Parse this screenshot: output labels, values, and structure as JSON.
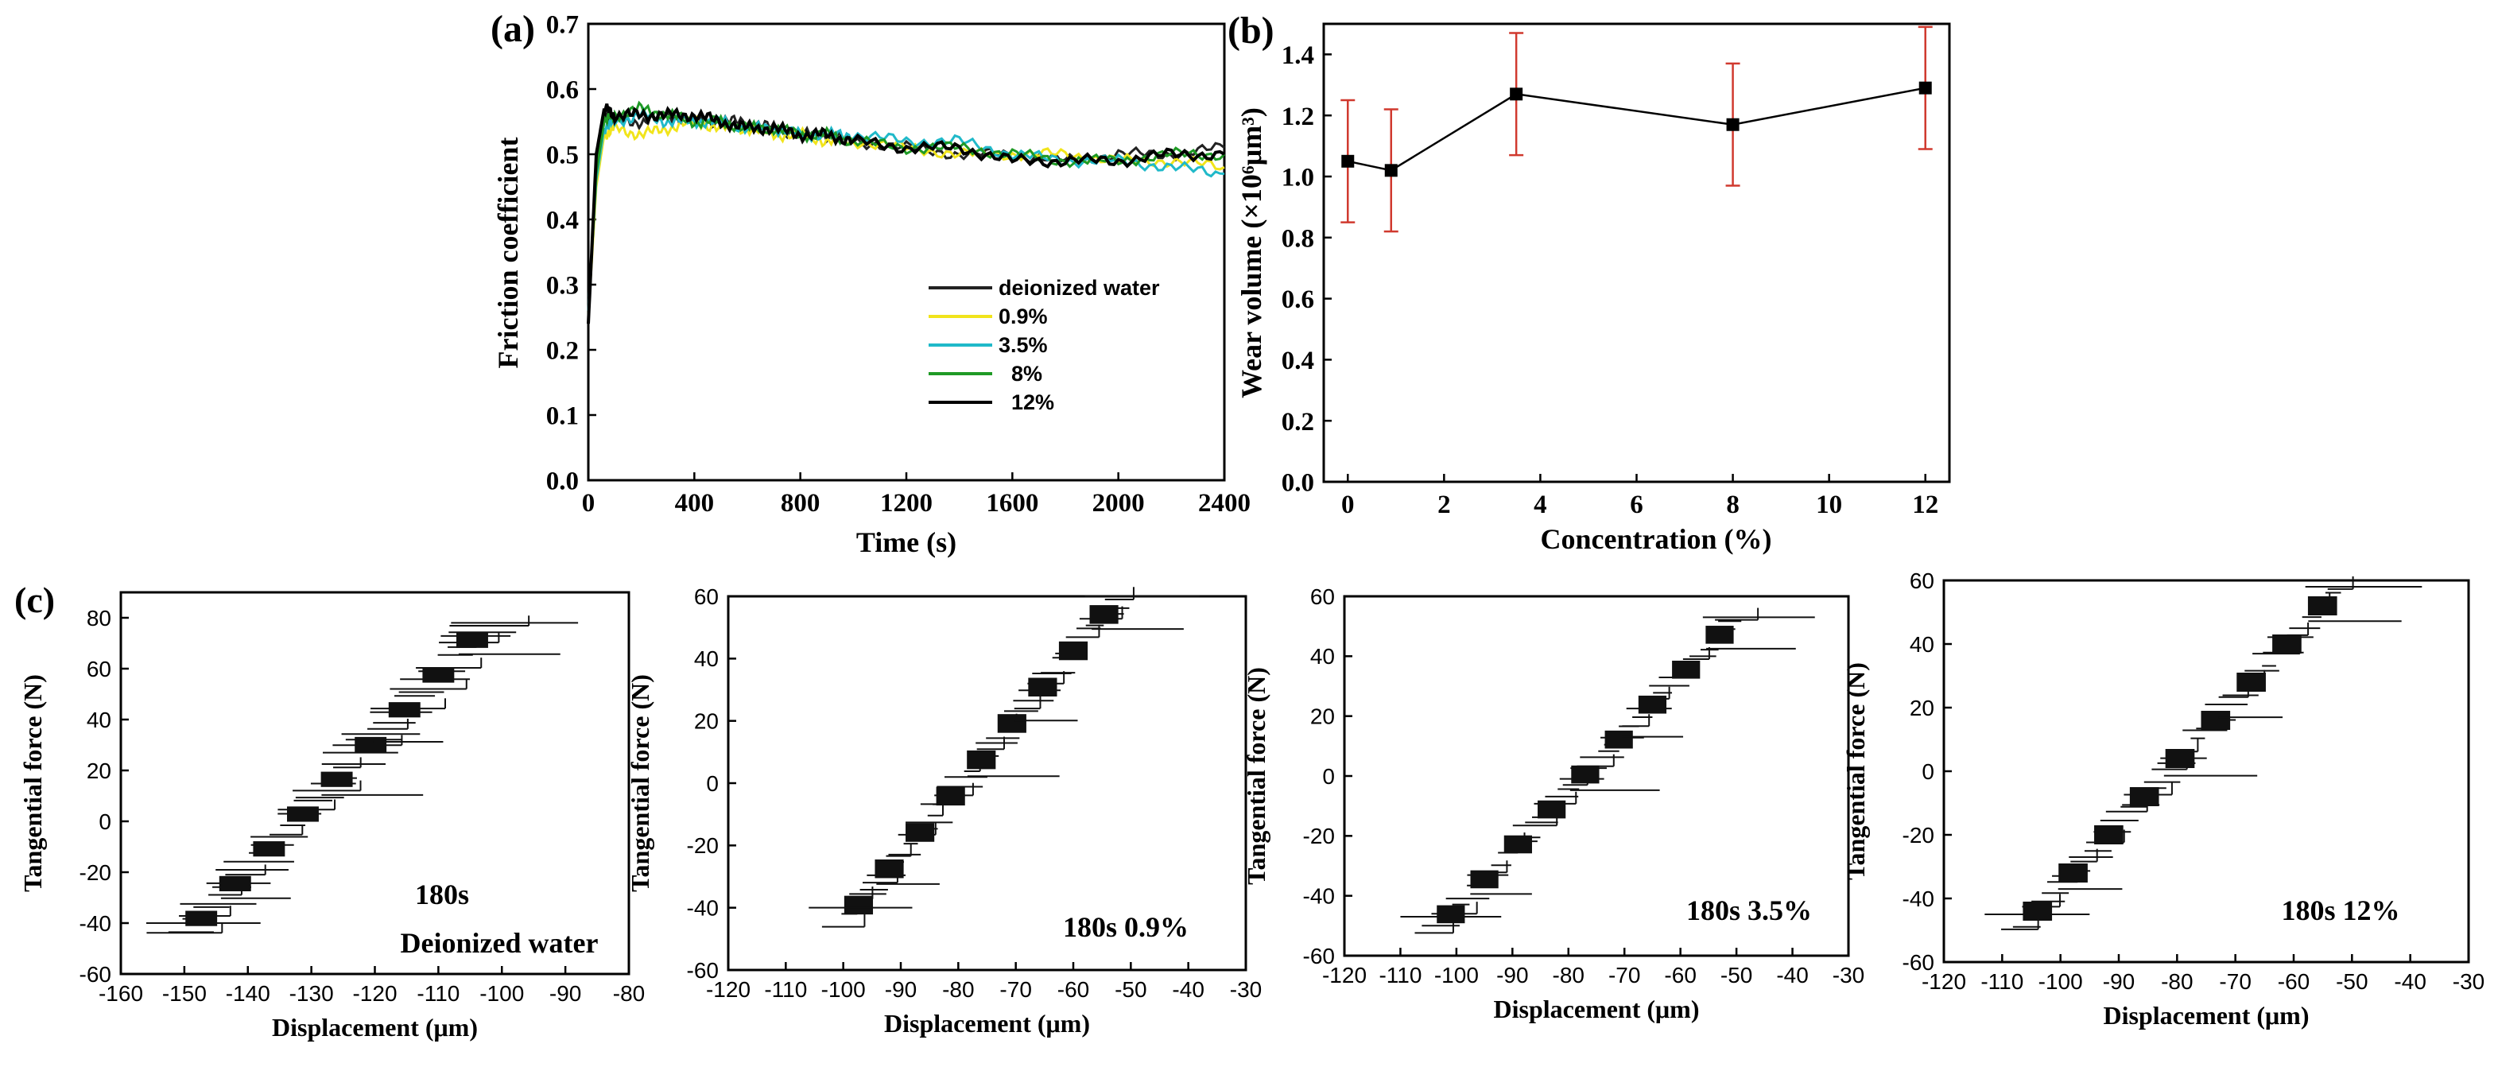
{
  "figure": {
    "panels": [
      "(a)",
      "(b)",
      "(c)"
    ]
  },
  "chart_data": [
    {
      "id": "a",
      "type": "line",
      "panel_label": "(a)",
      "xlabel": "Time (s)",
      "ylabel": "Friction coefficient",
      "xlim": [
        0,
        2400
      ],
      "ylim": [
        0.0,
        0.7
      ],
      "xticks": [
        "0",
        "400",
        "800",
        "1200",
        "1600",
        "2000",
        "2400"
      ],
      "yticks": [
        "0.0",
        "0.1",
        "0.2",
        "0.3",
        "0.4",
        "0.5",
        "0.6",
        "0.7"
      ],
      "legend_position": "bottom-right",
      "grid": false,
      "series": [
        {
          "name": "deionized water",
          "color": "#222222",
          "x": [
            0,
            30,
            60,
            100,
            200,
            300,
            400,
            500,
            600,
            700,
            800,
            900,
            1000,
            1200,
            1400,
            1600,
            1800,
            2000,
            2200,
            2400
          ],
          "y": [
            0.24,
            0.48,
            0.56,
            0.55,
            0.55,
            0.56,
            0.55,
            0.55,
            0.55,
            0.54,
            0.53,
            0.53,
            0.52,
            0.51,
            0.5,
            0.5,
            0.49,
            0.5,
            0.5,
            0.51
          ]
        },
        {
          "name": "0.9%",
          "color": "#f1e41b",
          "x": [
            0,
            30,
            60,
            100,
            200,
            300,
            400,
            500,
            600,
            700,
            800,
            900,
            1000,
            1200,
            1400,
            1600,
            1800,
            2000,
            2200,
            2400
          ],
          "y": [
            0.25,
            0.45,
            0.53,
            0.54,
            0.53,
            0.54,
            0.55,
            0.54,
            0.54,
            0.53,
            0.53,
            0.52,
            0.52,
            0.51,
            0.5,
            0.5,
            0.5,
            0.49,
            0.49,
            0.48
          ]
        },
        {
          "name": "3.5%",
          "color": "#20b9c9",
          "x": [
            0,
            30,
            60,
            100,
            200,
            300,
            400,
            500,
            600,
            700,
            800,
            900,
            1000,
            1200,
            1400,
            1600,
            1800,
            2000,
            2200,
            2400
          ],
          "y": [
            0.26,
            0.46,
            0.54,
            0.55,
            0.56,
            0.55,
            0.55,
            0.55,
            0.54,
            0.54,
            0.53,
            0.53,
            0.53,
            0.52,
            0.52,
            0.5,
            0.49,
            0.49,
            0.48,
            0.47
          ]
        },
        {
          "name": "8%",
          "color": "#1f9a25",
          "x": [
            0,
            30,
            60,
            100,
            200,
            300,
            400,
            500,
            600,
            700,
            800,
            900,
            1000,
            1200,
            1400,
            1600,
            1800,
            2000,
            2200,
            2400
          ],
          "y": [
            0.25,
            0.47,
            0.55,
            0.56,
            0.57,
            0.56,
            0.55,
            0.55,
            0.54,
            0.54,
            0.53,
            0.53,
            0.52,
            0.51,
            0.51,
            0.5,
            0.49,
            0.49,
            0.5,
            0.5
          ]
        },
        {
          "name": "12%",
          "color": "#000000",
          "x": [
            0,
            30,
            60,
            100,
            200,
            300,
            400,
            500,
            600,
            700,
            800,
            900,
            1000,
            1200,
            1400,
            1600,
            1800,
            2000,
            2200,
            2400
          ],
          "y": [
            0.24,
            0.5,
            0.57,
            0.56,
            0.56,
            0.56,
            0.56,
            0.55,
            0.54,
            0.54,
            0.53,
            0.53,
            0.52,
            0.51,
            0.51,
            0.49,
            0.49,
            0.49,
            0.5,
            0.5
          ]
        }
      ]
    },
    {
      "id": "b",
      "type": "line",
      "panel_label": "(b)",
      "xlabel": "Concentration (%)",
      "ylabel": "Wear volume (×10⁶μm³)",
      "xlim": [
        -0.5,
        12.5
      ],
      "ylim": [
        0.0,
        1.5
      ],
      "xticks": [
        "0",
        "2",
        "4",
        "6",
        "8",
        "10",
        "12"
      ],
      "yticks": [
        "0.0",
        "0.2",
        "0.4",
        "0.6",
        "0.8",
        "1.0",
        "1.2",
        "1.4"
      ],
      "grid": false,
      "series": [
        {
          "x": [
            0,
            0.9,
            3.5,
            8,
            12
          ],
          "y": [
            1.05,
            1.02,
            1.27,
            1.17,
            1.29
          ],
          "err": [
            0.2,
            0.2,
            0.2,
            0.2,
            0.2
          ],
          "color": "#000000",
          "error_color": "#d0392e"
        }
      ]
    },
    {
      "id": "c1",
      "type": "line",
      "panel_label": "(c)",
      "xlabel": "Displacement (μm)",
      "ylabel": "Tangential force (N)",
      "xlim": [
        -160,
        -80
      ],
      "ylim": [
        -60,
        90
      ],
      "xticks": [
        "-160",
        "-150",
        "-140",
        "-130",
        "-120",
        "-110",
        "-100",
        "-90",
        "-80"
      ],
      "yticks": [
        "-60",
        "-40",
        "-20",
        "0",
        "20",
        "40",
        "60",
        "80"
      ],
      "annotation": [
        "180s",
        "Deionized water"
      ],
      "loop": {
        "dmin": -156,
        "dmax": -88,
        "fmin": -45,
        "fmax": 78,
        "width": 9
      }
    },
    {
      "id": "c2",
      "type": "line",
      "xlabel": "Displacement (μm)",
      "ylabel": "Tangential force (N)",
      "xlim": [
        -120,
        -30
      ],
      "ylim": [
        -60,
        60
      ],
      "xticks": [
        "-120",
        "-110",
        "-100",
        "-90",
        "-80",
        "-70",
        "-60",
        "-50",
        "-40",
        "-30"
      ],
      "yticks": [
        "-60",
        "-40",
        "-20",
        "0",
        "20",
        "40",
        "60"
      ],
      "annotation": [
        "180s  0.9%"
      ],
      "loop": {
        "dmin": -106,
        "dmax": -38,
        "fmin": -45,
        "fmax": 60,
        "width": 6
      }
    },
    {
      "id": "c3",
      "type": "line",
      "xlabel": "Displacement (μm)",
      "ylabel": "Tangential force (N)",
      "xlim": [
        -120,
        -30
      ],
      "ylim": [
        -60,
        60
      ],
      "xticks": [
        "-120",
        "-110",
        "-100",
        "-90",
        "-80",
        "-70",
        "-60",
        "-50",
        "-40",
        "-30"
      ],
      "yticks": [
        "-60",
        "-40",
        "-20",
        "0",
        "20",
        "40",
        "60"
      ],
      "annotation": [
        "180s  3.5%"
      ],
      "loop": {
        "dmin": -110,
        "dmax": -36,
        "fmin": -52,
        "fmax": 53,
        "width": 6
      }
    },
    {
      "id": "c4",
      "type": "line",
      "xlabel": "Displacement (μm)",
      "ylabel": "Tangential force (N)",
      "xlim": [
        -120,
        -30
      ],
      "ylim": [
        -60,
        60
      ],
      "xticks": [
        "-120",
        "-110",
        "-100",
        "-90",
        "-80",
        "-70",
        "-60",
        "-50",
        "-40",
        "-30"
      ],
      "yticks": [
        "-60",
        "-40",
        "-20",
        "0",
        "20",
        "40",
        "60"
      ],
      "annotation": [
        "180s  12%"
      ],
      "loop": {
        "dmin": -113,
        "dmax": -38,
        "fmin": -50,
        "fmax": 58,
        "width": 6
      }
    }
  ]
}
